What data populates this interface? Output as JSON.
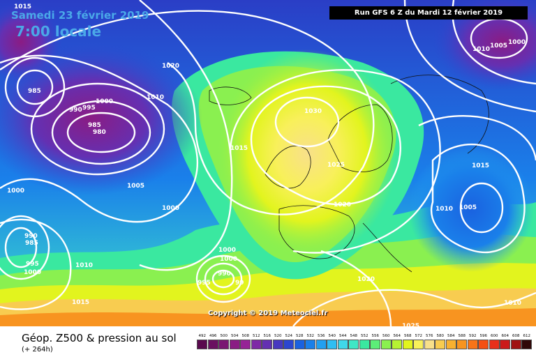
{
  "header": {
    "date": "Samedi 23 février 2019",
    "time": "7:00 locale",
    "run": "Run GFS 6 Z du Mardi 12 février 2019"
  },
  "footer": {
    "title": "Géop. Z500 & pression au sol",
    "subtitle": "(+ 264h)",
    "copyright": "Copyright © 2019 Meteociel.fr"
  },
  "legend": [
    {
      "label": "492",
      "color": "#5a0a4e"
    },
    {
      "label": "496",
      "color": "#6a1060"
    },
    {
      "label": "500",
      "color": "#7a1672"
    },
    {
      "label": "504",
      "color": "#8a1c84"
    },
    {
      "label": "508",
      "color": "#962496"
    },
    {
      "label": "512",
      "color": "#7e2aa6"
    },
    {
      "label": "516",
      "color": "#6430b2"
    },
    {
      "label": "520",
      "color": "#4838c0"
    },
    {
      "label": "524",
      "color": "#2c46d0"
    },
    {
      "label": "528",
      "color": "#1a62e0"
    },
    {
      "label": "532",
      "color": "#1a80ea"
    },
    {
      "label": "536",
      "color": "#22a0f0"
    },
    {
      "label": "540",
      "color": "#30bef2"
    },
    {
      "label": "544",
      "color": "#40d8ea"
    },
    {
      "label": "548",
      "color": "#40e6c6"
    },
    {
      "label": "552",
      "color": "#3ae8a0"
    },
    {
      "label": "556",
      "color": "#5cee78"
    },
    {
      "label": "560",
      "color": "#8af050"
    },
    {
      "label": "564",
      "color": "#b6f232"
    },
    {
      "label": "568",
      "color": "#e2f41e"
    },
    {
      "label": "572",
      "color": "#f8f05a"
    },
    {
      "label": "576",
      "color": "#f8e08a"
    },
    {
      "label": "580",
      "color": "#f8cc50"
    },
    {
      "label": "584",
      "color": "#f8b030"
    },
    {
      "label": "588",
      "color": "#f89420"
    },
    {
      "label": "592",
      "color": "#f87418"
    },
    {
      "label": "596",
      "color": "#f45014"
    },
    {
      "label": "600",
      "color": "#e8301a"
    },
    {
      "label": "604",
      "color": "#cc1a1a"
    },
    {
      "label": "608",
      "color": "#a01212"
    },
    {
      "label": "612",
      "color": "#300808"
    }
  ],
  "isobars": [
    {
      "text": "1015"
    },
    {
      "text": "1020"
    },
    {
      "text": "1010"
    },
    {
      "text": "985"
    },
    {
      "text": "990"
    },
    {
      "text": "995"
    },
    {
      "text": "1000"
    },
    {
      "text": "985"
    },
    {
      "text": "980"
    },
    {
      "text": "1015"
    },
    {
      "text": "1030"
    },
    {
      "text": "1025"
    },
    {
      "text": "1005"
    },
    {
      "text": "1000"
    },
    {
      "text": "1020"
    },
    {
      "text": "1000"
    },
    {
      "text": "990"
    },
    {
      "text": "985"
    },
    {
      "text": "995"
    },
    {
      "text": "1000"
    },
    {
      "text": "1010"
    },
    {
      "text": "1000"
    },
    {
      "text": "995"
    },
    {
      "text": "990"
    },
    {
      "text": "99"
    },
    {
      "text": "1015"
    },
    {
      "text": "1020"
    },
    {
      "text": "1025"
    },
    {
      "text": "1010"
    },
    {
      "text": "1005"
    },
    {
      "text": "1015"
    },
    {
      "text": "1010"
    },
    {
      "text": "1005"
    },
    {
      "text": "1000"
    },
    {
      "text": "1010"
    },
    {
      "text": "1000"
    }
  ]
}
